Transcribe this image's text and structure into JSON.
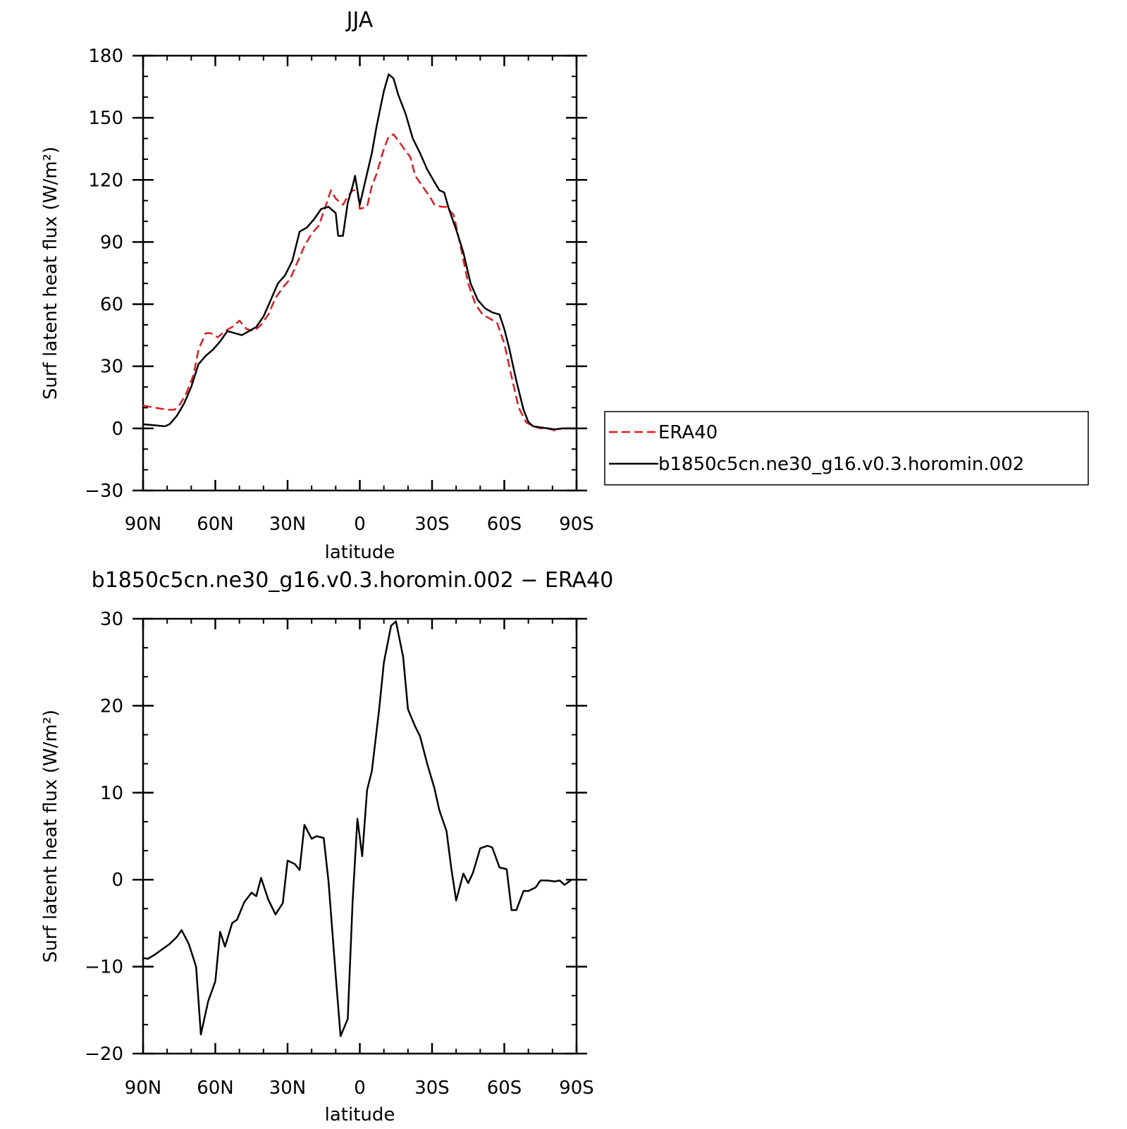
{
  "chart_data": [
    {
      "type": "line",
      "title": "JJA",
      "xlabel": "latitude",
      "ylabel": "Surf latent heat flux (W/m²)",
      "xlim": [
        90,
        -90
      ],
      "ylim": [
        -30,
        180
      ],
      "x_ticks": [
        {
          "value": 90,
          "label": "90N"
        },
        {
          "value": 60,
          "label": "60N"
        },
        {
          "value": 30,
          "label": "30N"
        },
        {
          "value": 0,
          "label": "0"
        },
        {
          "value": -30,
          "label": "30S"
        },
        {
          "value": -60,
          "label": "60S"
        },
        {
          "value": -90,
          "label": "90S"
        }
      ],
      "y_ticks": [
        {
          "value": -30,
          "label": "−30"
        },
        {
          "value": 0,
          "label": "0"
        },
        {
          "value": 30,
          "label": "30"
        },
        {
          "value": 60,
          "label": "60"
        },
        {
          "value": 90,
          "label": "90"
        },
        {
          "value": 120,
          "label": "120"
        },
        {
          "value": 150,
          "label": "150"
        },
        {
          "value": 180,
          "label": "180"
        }
      ],
      "legend": {
        "placement": "right"
      },
      "series": [
        {
          "name": "ERA40",
          "color": "#e8191c",
          "dash": "dashed",
          "points": [
            [
              90,
              11
            ],
            [
              85,
              10
            ],
            [
              80,
              9
            ],
            [
              77,
              9
            ],
            [
              75,
              11
            ],
            [
              72,
              17
            ],
            [
              69,
              26
            ],
            [
              67,
              38
            ],
            [
              64,
              46
            ],
            [
              62,
              46
            ],
            [
              59,
              44
            ],
            [
              56,
              47
            ],
            [
              53,
              49
            ],
            [
              50,
              52
            ],
            [
              47,
              48
            ],
            [
              44,
              47
            ],
            [
              41,
              50
            ],
            [
              38,
              55
            ],
            [
              35,
              63
            ],
            [
              32,
              68
            ],
            [
              29,
              72
            ],
            [
              26,
              80
            ],
            [
              23,
              88
            ],
            [
              20,
              94
            ],
            [
              17,
              98
            ],
            [
              14,
              108
            ],
            [
              12,
              115
            ],
            [
              10,
              111
            ],
            [
              7,
              108
            ],
            [
              5,
              112
            ],
            [
              3,
              115
            ],
            [
              1,
              115
            ],
            [
              0,
              106
            ],
            [
              -3,
              107
            ],
            [
              -5,
              117
            ],
            [
              -7,
              123
            ],
            [
              -10,
              135
            ],
            [
              -12,
              141
            ],
            [
              -14,
              142
            ],
            [
              -16,
              139
            ],
            [
              -19,
              134
            ],
            [
              -21,
              131
            ],
            [
              -23,
              122
            ],
            [
              -26,
              117
            ],
            [
              -29,
              112
            ],
            [
              -31,
              108
            ],
            [
              -34,
              107
            ],
            [
              -36,
              107
            ],
            [
              -39,
              103
            ],
            [
              -42,
              87
            ],
            [
              -45,
              70
            ],
            [
              -48,
              60
            ],
            [
              -51,
              55
            ],
            [
              -54,
              53
            ],
            [
              -57,
              51
            ],
            [
              -60,
              41
            ],
            [
              -63,
              25
            ],
            [
              -66,
              10
            ],
            [
              -69,
              3
            ],
            [
              -72,
              1
            ],
            [
              -75,
              0
            ],
            [
              -78,
              0
            ],
            [
              -81,
              -1
            ],
            [
              -84,
              0
            ],
            [
              -87,
              0
            ],
            [
              -90,
              0
            ]
          ]
        },
        {
          "name": "b1850c5cn.ne30_g16.v0.3.horomin.002",
          "color": "#000000",
          "dash": "solid",
          "points": [
            [
              90,
              2
            ],
            [
              85,
              1.5
            ],
            [
              81,
              1
            ],
            [
              79,
              2
            ],
            [
              76,
              6
            ],
            [
              73,
              12
            ],
            [
              70,
              20
            ],
            [
              67,
              31
            ],
            [
              64,
              35
            ],
            [
              61,
              38
            ],
            [
              58,
              42
            ],
            [
              55,
              47
            ],
            [
              52,
              46
            ],
            [
              49,
              45
            ],
            [
              46,
              47
            ],
            [
              43,
              49
            ],
            [
              40,
              54
            ],
            [
              37,
              62
            ],
            [
              34,
              70
            ],
            [
              31,
              74
            ],
            [
              28,
              81
            ],
            [
              25,
              95
            ],
            [
              22,
              97
            ],
            [
              19,
              101
            ],
            [
              16,
              106
            ],
            [
              13,
              107
            ],
            [
              10,
              104
            ],
            [
              9,
              93
            ],
            [
              7,
              93
            ],
            [
              5,
              109
            ],
            [
              3,
              117
            ],
            [
              2,
              122
            ],
            [
              0,
              108
            ],
            [
              -2,
              118
            ],
            [
              -5,
              133
            ],
            [
              -7,
              146
            ],
            [
              -10,
              163
            ],
            [
              -12,
              171
            ],
            [
              -14,
              169
            ],
            [
              -16,
              161
            ],
            [
              -19,
              152
            ],
            [
              -22,
              140
            ],
            [
              -25,
              133
            ],
            [
              -28,
              125
            ],
            [
              -31,
              119
            ],
            [
              -33,
              115
            ],
            [
              -35,
              114
            ],
            [
              -37,
              106
            ],
            [
              -40,
              96
            ],
            [
              -43,
              85
            ],
            [
              -46,
              70
            ],
            [
              -49,
              62
            ],
            [
              -52,
              58
            ],
            [
              -55,
              56
            ],
            [
              -58,
              55
            ],
            [
              -60,
              48
            ],
            [
              -62,
              39
            ],
            [
              -65,
              23
            ],
            [
              -68,
              9
            ],
            [
              -70,
              3
            ],
            [
              -72,
              1
            ],
            [
              -75,
              0.5
            ],
            [
              -78,
              0
            ],
            [
              -81,
              -0.5
            ],
            [
              -84,
              0
            ],
            [
              -87,
              0
            ],
            [
              -90,
              0
            ]
          ]
        }
      ]
    },
    {
      "type": "line",
      "title": "b1850c5cn.ne30_g16.v0.3.horomin.002 − ERA40",
      "xlabel": "latitude",
      "ylabel": "Surf latent heat flux (W/m²)",
      "xlim": [
        90,
        -90
      ],
      "ylim": [
        -20,
        30
      ],
      "x_ticks": [
        {
          "value": 90,
          "label": "90N"
        },
        {
          "value": 60,
          "label": "60N"
        },
        {
          "value": 30,
          "label": "30N"
        },
        {
          "value": 0,
          "label": "0"
        },
        {
          "value": -30,
          "label": "30S"
        },
        {
          "value": -60,
          "label": "60S"
        },
        {
          "value": -90,
          "label": "90S"
        }
      ],
      "y_ticks": [
        {
          "value": -20,
          "label": "−20"
        },
        {
          "value": -10,
          "label": "−10"
        },
        {
          "value": 0,
          "label": "0"
        },
        {
          "value": 10,
          "label": "10"
        },
        {
          "value": 20,
          "label": "20"
        },
        {
          "value": 30,
          "label": "30"
        }
      ],
      "series": [
        {
          "color": "#000000",
          "dash": "solid",
          "points": [
            [
              90,
              -9
            ],
            [
              88,
              -9.1
            ],
            [
              85,
              -8.6
            ],
            [
              82,
              -8
            ],
            [
              79,
              -7.4
            ],
            [
              76,
              -6.6
            ],
            [
              74,
              -5.8
            ],
            [
              71,
              -7.4
            ],
            [
              68,
              -10
            ],
            [
              66,
              -17.8
            ],
            [
              63,
              -14
            ],
            [
              60,
              -11.7
            ],
            [
              58,
              -6
            ],
            [
              56,
              -7.7
            ],
            [
              53,
              -5
            ],
            [
              51,
              -4.6
            ],
            [
              48,
              -2.6
            ],
            [
              45,
              -1.5
            ],
            [
              43,
              -1.9
            ],
            [
              41,
              0.2
            ],
            [
              38,
              -2.3
            ],
            [
              35,
              -4
            ],
            [
              32,
              -2.7
            ],
            [
              30,
              2.2
            ],
            [
              27,
              1.8
            ],
            [
              25,
              1.1
            ],
            [
              23,
              6.3
            ],
            [
              20,
              4.7
            ],
            [
              18,
              5
            ],
            [
              15,
              4.8
            ],
            [
              13,
              -0.2
            ],
            [
              10,
              -11
            ],
            [
              8,
              -18
            ],
            [
              5,
              -16
            ],
            [
              3,
              -2.5
            ],
            [
              1,
              7
            ],
            [
              -1,
              2.7
            ],
            [
              -3,
              10.3
            ],
            [
              -5,
              12.5
            ],
            [
              -8,
              19.5
            ],
            [
              -10,
              25
            ],
            [
              -13,
              29.2
            ],
            [
              -15,
              29.7
            ],
            [
              -18,
              25.6
            ],
            [
              -20,
              19.6
            ],
            [
              -23,
              17.6
            ],
            [
              -25,
              16.5
            ],
            [
              -28,
              13.3
            ],
            [
              -31,
              10.5
            ],
            [
              -33,
              8
            ],
            [
              -36,
              5.6
            ],
            [
              -38,
              1.3
            ],
            [
              -40,
              -2.4
            ],
            [
              -43,
              0.7
            ],
            [
              -45,
              -0.4
            ],
            [
              -47,
              0.8
            ],
            [
              -50,
              3.6
            ],
            [
              -53,
              3.9
            ],
            [
              -55,
              3.7
            ],
            [
              -58,
              1.4
            ],
            [
              -61,
              1.2
            ],
            [
              -63,
              -3.5
            ],
            [
              -65,
              -3.5
            ],
            [
              -68,
              -1.3
            ],
            [
              -70,
              -1.3
            ],
            [
              -73,
              -0.9
            ],
            [
              -75,
              -0.1
            ],
            [
              -78,
              -0.1
            ],
            [
              -81,
              -0.2
            ],
            [
              -83,
              -0.1
            ],
            [
              -85,
              -0.6
            ],
            [
              -88,
              0
            ],
            [
              -90,
              0
            ]
          ]
        }
      ]
    }
  ]
}
